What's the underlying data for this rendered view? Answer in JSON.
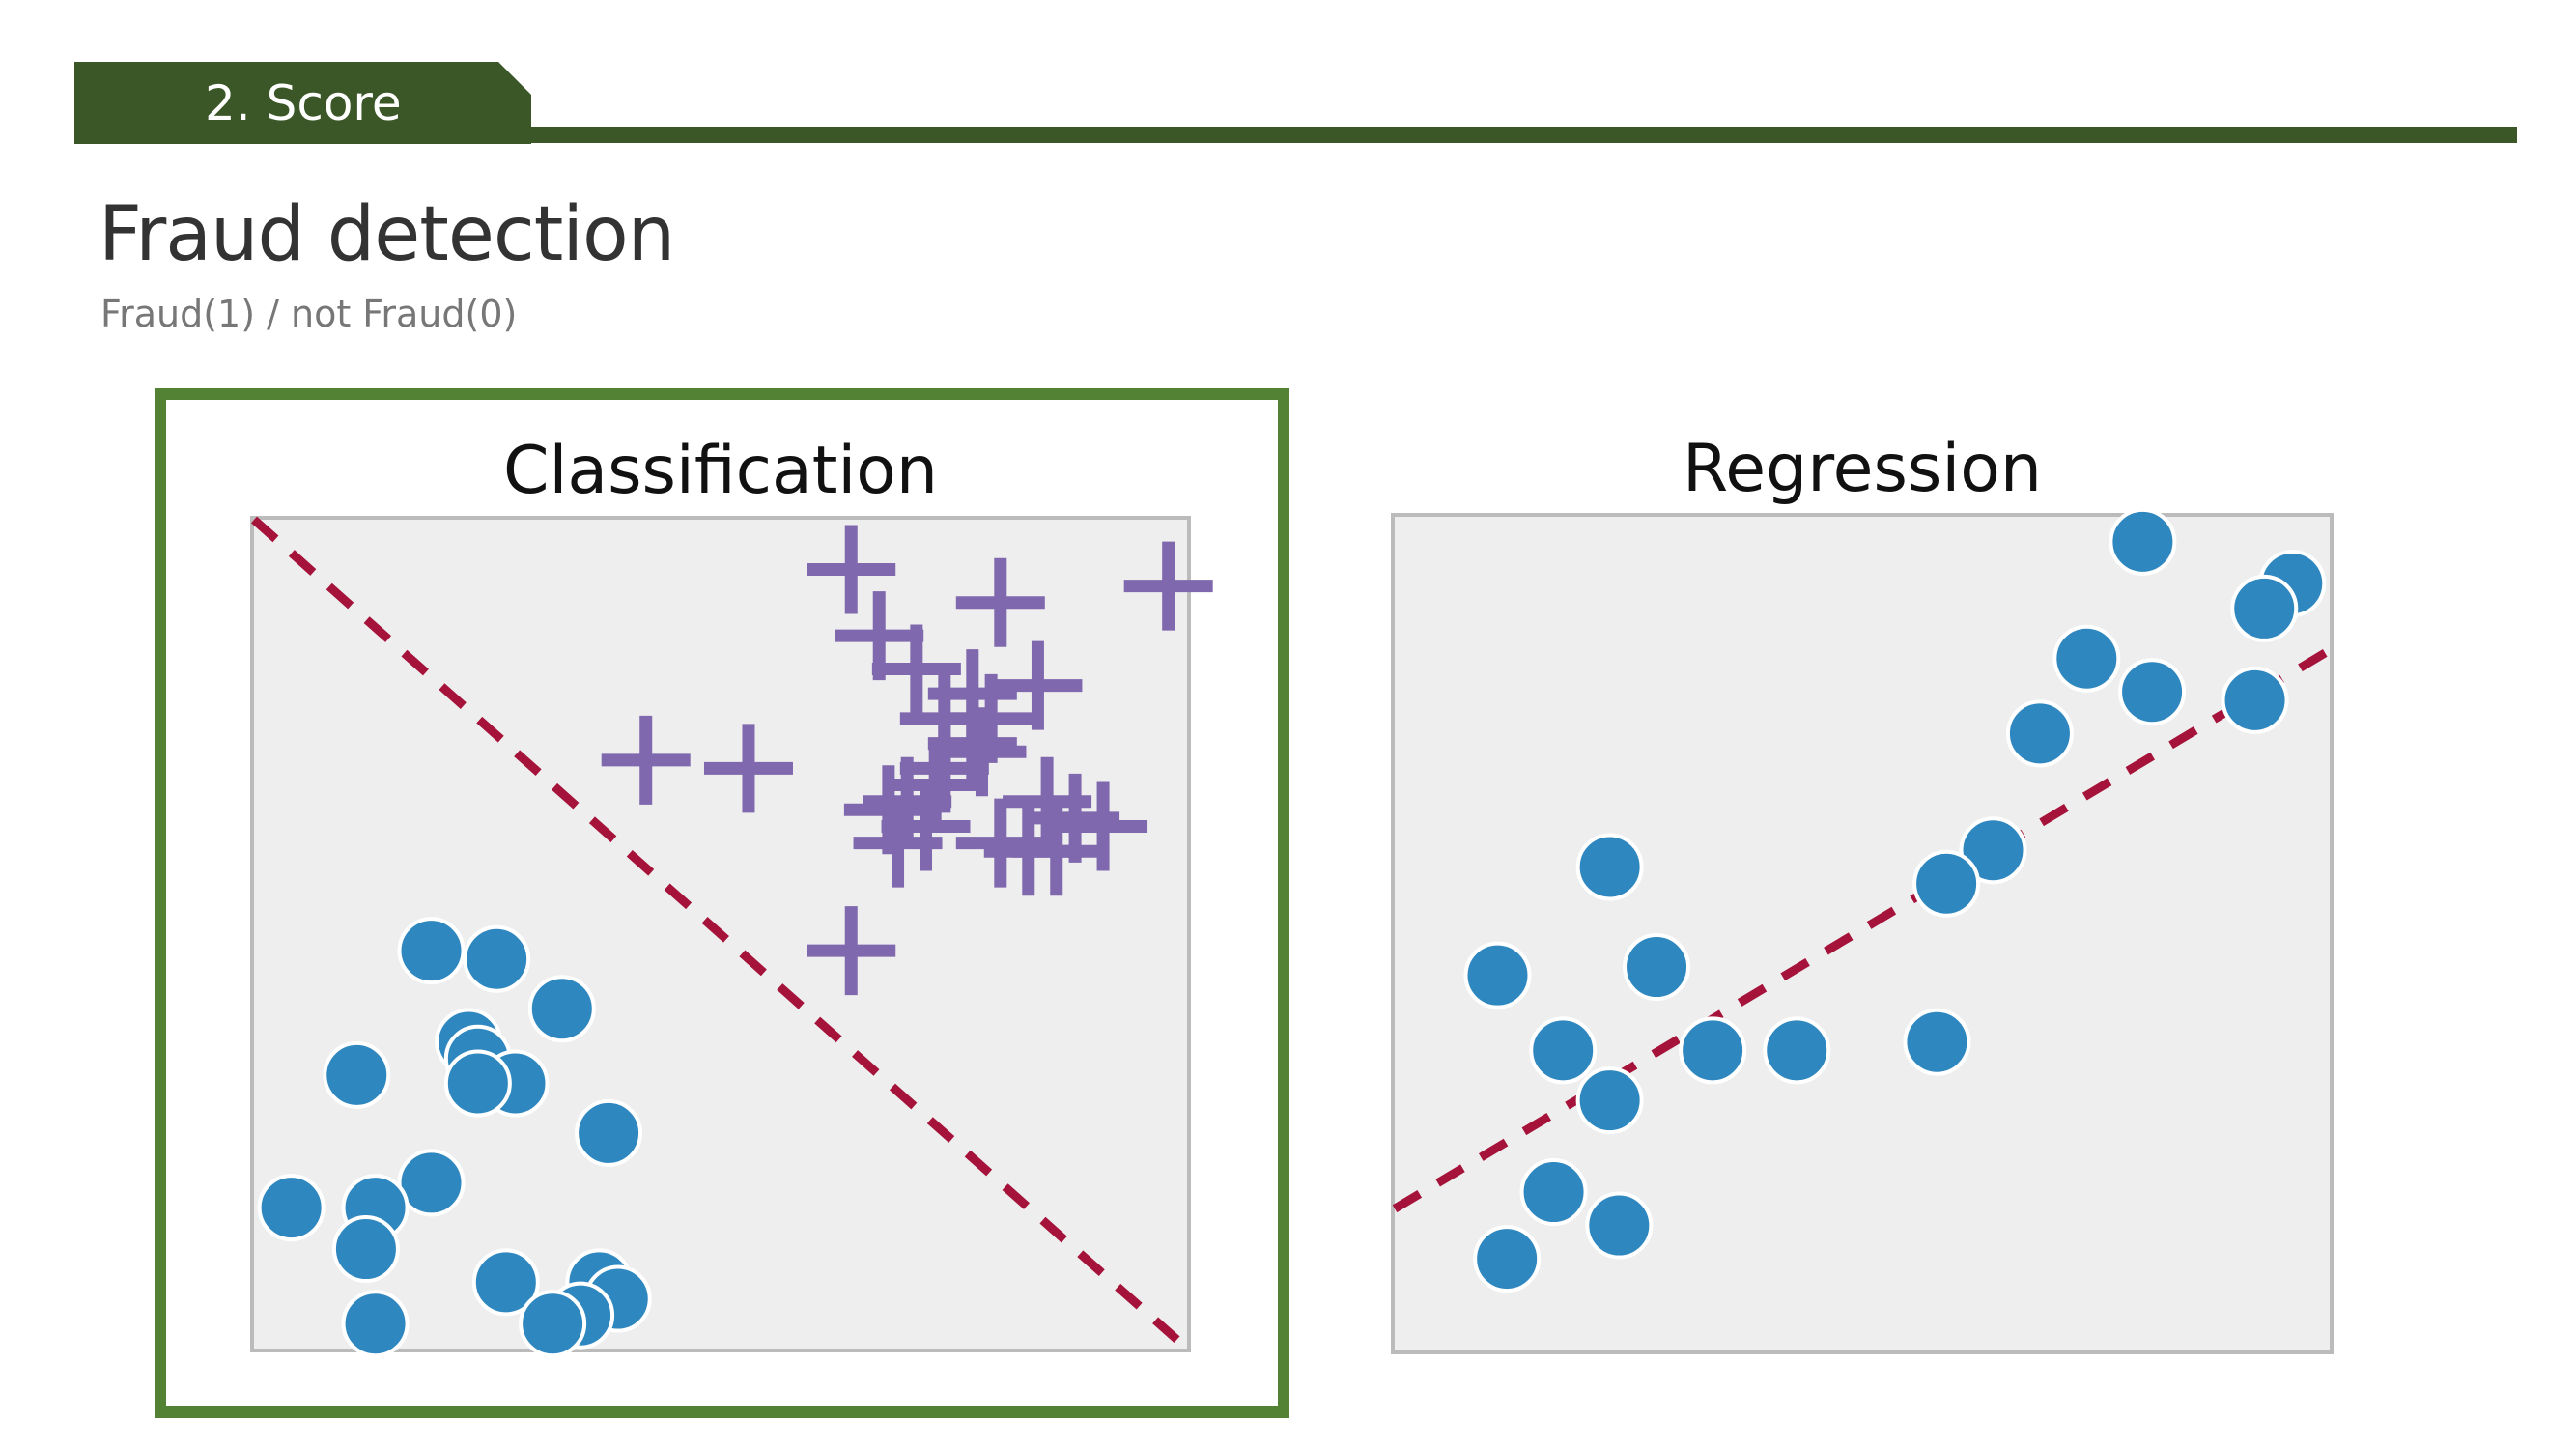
{
  "header": {
    "section_label": "2. Score",
    "accent_color": "#3b5727"
  },
  "page": {
    "title": "Fraud detection",
    "subtitle": "Fraud(1) / not Fraud(0)"
  },
  "colors": {
    "panel_background": "#eeeeee",
    "panel_border": "#bbbbbb",
    "highlight_frame": "#548235",
    "point_blue": "#2f87c0",
    "marker_purple": "#7f68ad",
    "boundary_line": "#a5133a"
  },
  "panels": [
    {
      "title": "Classification",
      "highlighted": true
    },
    {
      "title": "Regression",
      "highlighted": false
    }
  ],
  "chart_data": [
    {
      "type": "scatter",
      "title": "Classification",
      "xlim": [
        0,
        100
      ],
      "ylim": [
        0,
        100
      ],
      "grid": false,
      "series": [
        {
          "marker": "circle",
          "points": [
            [
              19,
              48
            ],
            [
              26,
              47
            ],
            [
              33,
              41
            ],
            [
              11,
              33
            ],
            [
              23,
              37
            ],
            [
              24,
              35
            ],
            [
              28,
              32
            ],
            [
              24,
              32
            ],
            [
              38,
              26
            ],
            [
              19,
              20
            ],
            [
              13,
              17
            ],
            [
              4,
              17
            ],
            [
              12,
              12
            ],
            [
              27,
              8
            ],
            [
              37,
              8
            ],
            [
              39,
              6
            ],
            [
              35,
              4
            ],
            [
              13,
              3
            ],
            [
              32,
              3
            ]
          ]
        },
        {
          "marker": "plus",
          "points": [
            [
              64,
              94
            ],
            [
              80,
              90
            ],
            [
              98,
              92
            ],
            [
              67,
              86
            ],
            [
              71,
              82
            ],
            [
              77,
              79
            ],
            [
              84,
              80
            ],
            [
              74,
              76
            ],
            [
              79,
              76
            ],
            [
              77,
              73
            ],
            [
              42,
              71
            ],
            [
              53,
              70
            ],
            [
              74,
              70
            ],
            [
              78,
              72
            ],
            [
              73,
              68
            ],
            [
              70,
              66
            ],
            [
              68,
              65
            ],
            [
              72,
              63
            ],
            [
              69,
              61
            ],
            [
              85,
              66
            ],
            [
              88,
              64
            ],
            [
              91,
              63
            ],
            [
              86,
              60
            ],
            [
              83,
              60
            ],
            [
              80,
              61
            ],
            [
              64,
              48
            ]
          ]
        }
      ],
      "boundary": [
        [
          0,
          100
        ],
        [
          100,
          0
        ]
      ]
    },
    {
      "type": "scatter",
      "title": "Regression",
      "xlim": [
        0,
        100
      ],
      "ylim": [
        0,
        100
      ],
      "grid": false,
      "series": [
        {
          "marker": "circle",
          "points": [
            [
              80,
              97
            ],
            [
              96,
              92
            ],
            [
              93,
              89
            ],
            [
              74,
              83
            ],
            [
              81,
              79
            ],
            [
              92,
              78
            ],
            [
              69,
              74
            ],
            [
              64,
              60
            ],
            [
              59,
              56
            ],
            [
              23,
              58
            ],
            [
              11,
              45
            ],
            [
              28,
              46
            ],
            [
              18,
              36
            ],
            [
              34,
              36
            ],
            [
              43,
              36
            ],
            [
              58,
              37
            ],
            [
              23,
              30
            ],
            [
              17,
              19
            ],
            [
              24,
              15
            ],
            [
              12,
              11
            ]
          ]
        }
      ],
      "trend": [
        [
          0,
          17
        ],
        [
          100,
          84
        ]
      ]
    }
  ]
}
